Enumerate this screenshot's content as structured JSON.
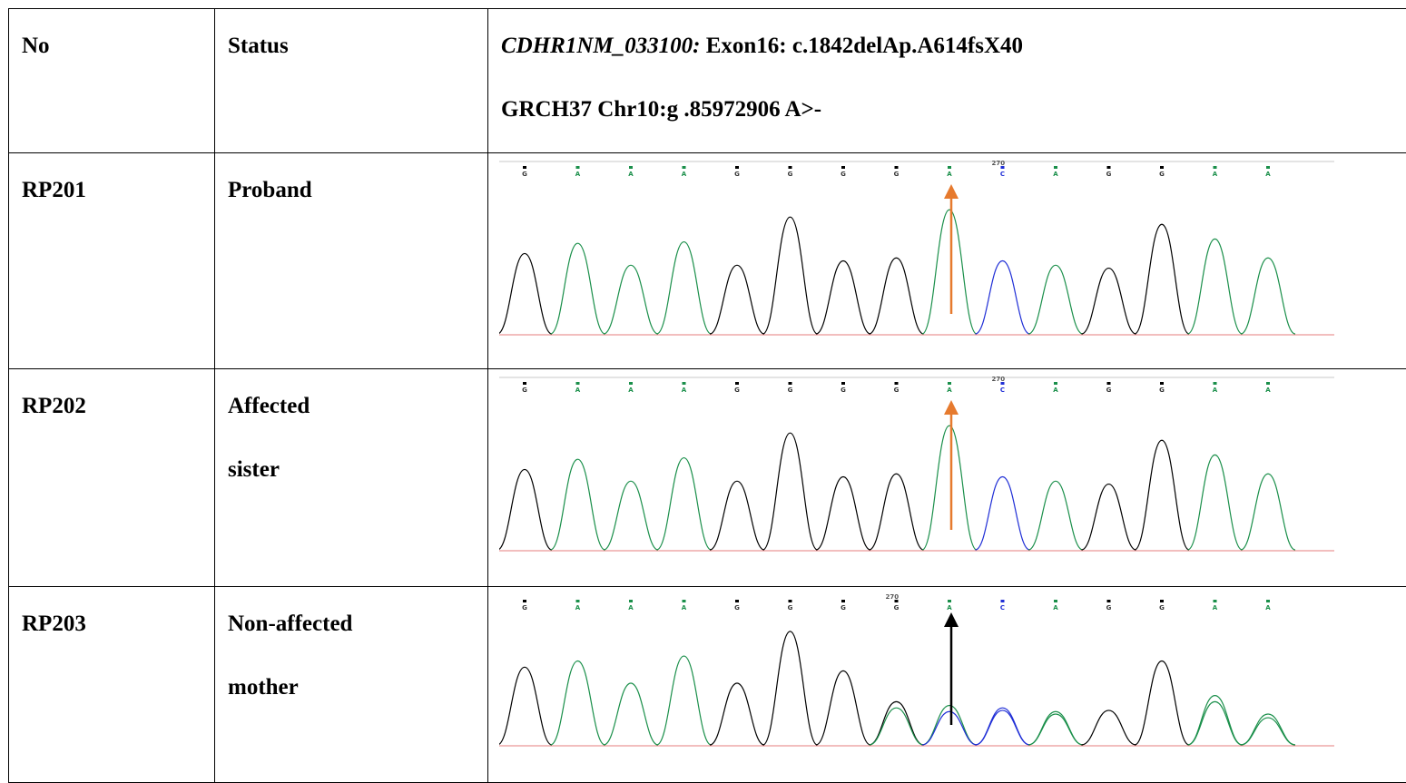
{
  "table": {
    "header": {
      "col_no": "No",
      "col_status": "Status",
      "variant_gene": "CDHR1NM_033100:",
      "variant_exon": " Exon16: c.1842delAp.A614fsX40",
      "variant_genomic": "GRCH37 Chr10:g .85972906 A>-"
    },
    "rows": [
      {
        "id": "RP201",
        "status_line1": "Proband",
        "status_line2": "",
        "arrow_color": "#e67a2e"
      },
      {
        "id": "RP202",
        "status_line1": "Affected",
        "status_line2": "sister",
        "arrow_color": "#e67a2e"
      },
      {
        "id": "RP203",
        "status_line1": "Non-affected",
        "status_line2": "mother",
        "arrow_color": "#000000"
      }
    ]
  },
  "chromatogram": {
    "base_calls": [
      "G",
      "A",
      "A",
      "A",
      "G",
      "G",
      "G",
      "G",
      "A",
      "C",
      "A",
      "G",
      "G",
      "A",
      "A"
    ],
    "position_label": "270",
    "trace_colors": {
      "G": "#000000",
      "A": "#1a8f4a",
      "C": "#1f2ed6",
      "T": "#d62728"
    }
  }
}
